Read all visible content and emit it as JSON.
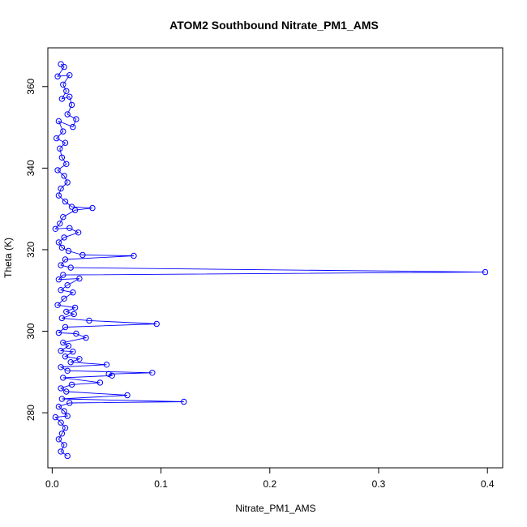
{
  "chart_data": {
    "type": "line",
    "title": "ATOM2 Southbound Nitrate_PM1_AMS",
    "xlabel": "Nitrate_PM1_AMS",
    "ylabel": "Theta (K)",
    "xlim": [
      -0.004,
      0.414
    ],
    "ylim": [
      266.5,
      369.5
    ],
    "xticks": [
      0.0,
      0.1,
      0.2,
      0.3,
      0.4
    ],
    "xtick_labels": [
      "0.0",
      "0.1",
      "0.2",
      "0.3",
      "0.4"
    ],
    "yticks": [
      280,
      300,
      320,
      340,
      360
    ],
    "ytick_labels": [
      "280",
      "300",
      "320",
      "340",
      "360"
    ],
    "grid": false,
    "series": [
      {
        "color": "#0000ff",
        "marker": "open-circle",
        "points": [
          [
            0.008,
            365.5
          ],
          [
            0.011,
            364.8
          ],
          [
            0.005,
            362.5
          ],
          [
            0.016,
            362.8
          ],
          [
            0.01,
            360.5
          ],
          [
            0.013,
            358.9
          ],
          [
            0.009,
            357.0
          ],
          [
            0.016,
            357.5
          ],
          [
            0.018,
            355.5
          ],
          [
            0.014,
            353.2
          ],
          [
            0.022,
            352.0
          ],
          [
            0.019,
            350.1
          ],
          [
            0.006,
            351.5
          ],
          [
            0.01,
            349.0
          ],
          [
            0.004,
            347.3
          ],
          [
            0.012,
            346.2
          ],
          [
            0.007,
            344.8
          ],
          [
            0.009,
            342.6
          ],
          [
            0.013,
            341.0
          ],
          [
            0.005,
            339.5
          ],
          [
            0.011,
            338.1
          ],
          [
            0.014,
            336.5
          ],
          [
            0.008,
            335.0
          ],
          [
            0.006,
            333.3
          ],
          [
            0.012,
            331.8
          ],
          [
            0.018,
            330.5
          ],
          [
            0.037,
            330.2
          ],
          [
            0.021,
            329.7
          ],
          [
            0.01,
            328.0
          ],
          [
            0.007,
            326.4
          ],
          [
            0.003,
            325.1
          ],
          [
            0.016,
            325.3
          ],
          [
            0.024,
            324.2
          ],
          [
            0.011,
            323.0
          ],
          [
            0.006,
            321.8
          ],
          [
            0.009,
            320.5
          ],
          [
            0.015,
            319.7
          ],
          [
            0.028,
            318.7
          ],
          [
            0.075,
            318.5
          ],
          [
            0.012,
            317.6
          ],
          [
            0.008,
            316.2
          ],
          [
            0.017,
            315.6
          ],
          [
            0.398,
            314.5
          ],
          [
            0.01,
            313.8
          ],
          [
            0.006,
            312.7
          ],
          [
            0.025,
            312.9
          ],
          [
            0.014,
            311.3
          ],
          [
            0.008,
            310.1
          ],
          [
            0.019,
            309.5
          ],
          [
            0.011,
            308.0
          ],
          [
            0.005,
            306.4
          ],
          [
            0.021,
            305.8
          ],
          [
            0.013,
            304.8
          ],
          [
            0.02,
            304.2
          ],
          [
            0.009,
            303.2
          ],
          [
            0.034,
            302.6
          ],
          [
            0.096,
            301.8
          ],
          [
            0.012,
            301.0
          ],
          [
            0.006,
            299.6
          ],
          [
            0.022,
            299.4
          ],
          [
            0.031,
            298.4
          ],
          [
            0.01,
            297.2
          ],
          [
            0.015,
            296.4
          ],
          [
            0.008,
            295.2
          ],
          [
            0.019,
            295.0
          ],
          [
            0.012,
            293.8
          ],
          [
            0.025,
            293.2
          ],
          [
            0.017,
            292.4
          ],
          [
            0.05,
            291.8
          ],
          [
            0.008,
            291.2
          ],
          [
            0.014,
            290.3
          ],
          [
            0.092,
            289.8
          ],
          [
            0.052,
            289.5
          ],
          [
            0.055,
            289.1
          ],
          [
            0.01,
            288.6
          ],
          [
            0.044,
            287.4
          ],
          [
            0.018,
            286.9
          ],
          [
            0.008,
            286.0
          ],
          [
            0.013,
            285.2
          ],
          [
            0.069,
            284.3
          ],
          [
            0.009,
            283.4
          ],
          [
            0.121,
            282.7
          ],
          [
            0.016,
            282.4
          ],
          [
            0.006,
            281.5
          ],
          [
            0.011,
            280.4
          ],
          [
            0.014,
            279.2
          ],
          [
            0.003,
            278.9
          ],
          [
            0.008,
            277.6
          ],
          [
            0.012,
            276.3
          ],
          [
            0.009,
            274.9
          ],
          [
            0.006,
            273.5
          ],
          [
            0.011,
            272.1
          ],
          [
            0.008,
            270.5
          ],
          [
            0.014,
            269.4
          ]
        ]
      }
    ]
  }
}
